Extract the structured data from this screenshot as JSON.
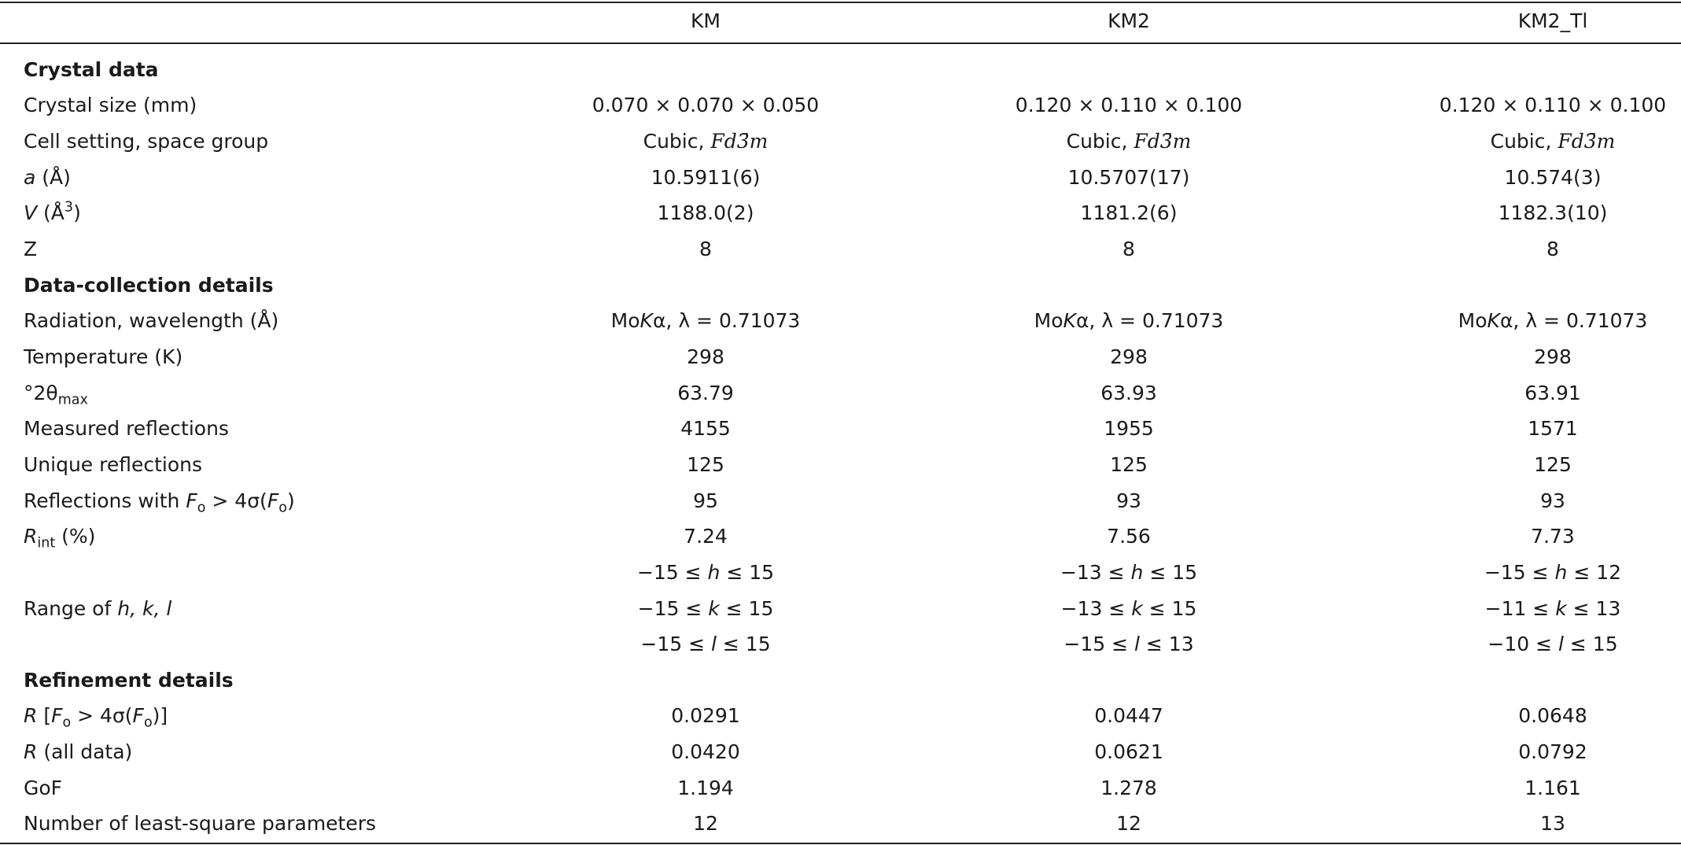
{
  "header": {
    "columns": [
      "KM",
      "KM2",
      "KM2_Tl"
    ]
  },
  "sections": [
    {
      "title": "Crystal data",
      "rows": [
        {
          "label": "Crystal size (mm)",
          "cells": [
            [
              "0.070 × 0.070 × 0.050"
            ],
            [
              "0.120 × 0.110 × 0.100"
            ],
            [
              "0.120 × 0.110 × 0.100"
            ]
          ]
        },
        {
          "label": "Cell setting, space group",
          "cells": [
            [
              [
                "Cubic, ",
                {
                  "text": "Fd3̄m",
                  "style": "math"
                }
              ]
            ],
            [
              [
                "Cubic, ",
                {
                  "text": "Fd3̄m",
                  "style": "math"
                }
              ]
            ],
            [
              [
                "Cubic, ",
                {
                  "text": "Fd3̄m",
                  "style": "math"
                }
              ]
            ]
          ]
        },
        {
          "label": [
            {
              "text": "a",
              "style": "i"
            },
            " (Å)"
          ],
          "cells": [
            [
              "10.5911(6)"
            ],
            [
              "10.5707(17)"
            ],
            [
              "10.574(3)"
            ]
          ]
        },
        {
          "label": [
            {
              "text": "V",
              "style": "i"
            },
            " (Å",
            {
              "text": "3",
              "style": "sup"
            },
            ")"
          ],
          "cells": [
            [
              "1188.0(2)"
            ],
            [
              "1181.2(6)"
            ],
            [
              "1182.3(10)"
            ]
          ]
        },
        {
          "label": "Z",
          "cells": [
            [
              "8"
            ],
            [
              "8"
            ],
            [
              "8"
            ]
          ]
        }
      ]
    },
    {
      "title": "Data-collection details",
      "rows": [
        {
          "label": "Radiation, wavelength (Å)",
          "cells": [
            [
              [
                "Mo",
                {
                  "text": "K",
                  "style": "i"
                },
                "α, λ = 0.71073"
              ]
            ],
            [
              [
                "Mo",
                {
                  "text": "K",
                  "style": "i"
                },
                "α, λ = 0.71073"
              ]
            ],
            [
              [
                "Mo",
                {
                  "text": "K",
                  "style": "i"
                },
                "α, λ = 0.71073"
              ]
            ]
          ]
        },
        {
          "label": "Temperature (K)",
          "cells": [
            [
              "298"
            ],
            [
              "298"
            ],
            [
              "298"
            ]
          ]
        },
        {
          "label": [
            "°2θ",
            {
              "text": "max",
              "style": "sub"
            }
          ],
          "cells": [
            [
              "63.79"
            ],
            [
              "63.93"
            ],
            [
              "63.91"
            ]
          ]
        },
        {
          "label": "Measured reflections",
          "cells": [
            [
              "4155"
            ],
            [
              "1955"
            ],
            [
              "1571"
            ]
          ]
        },
        {
          "label": "Unique reflections",
          "cells": [
            [
              "125"
            ],
            [
              "125"
            ],
            [
              "125"
            ]
          ]
        },
        {
          "label": [
            "Reflections with ",
            {
              "text": "F",
              "style": "i"
            },
            {
              "text": "o",
              "style": "sub"
            },
            " > 4σ(",
            {
              "text": "F",
              "style": "i"
            },
            {
              "text": "o",
              "style": "sub"
            },
            ")"
          ],
          "cells": [
            [
              "95"
            ],
            [
              "93"
            ],
            [
              "93"
            ]
          ]
        },
        {
          "label": [
            {
              "text": "R",
              "style": "i"
            },
            {
              "text": "int",
              "style": "sub"
            },
            " (%)"
          ],
          "cells": [
            [
              "7.24"
            ],
            [
              "7.56"
            ],
            [
              "7.73"
            ]
          ]
        },
        {
          "label": [
            "Range of ",
            {
              "text": "h, k, l",
              "style": "i"
            }
          ],
          "cells": [
            [
              [
                "−15 ≤ ",
                {
                  "text": "h",
                  "style": "i"
                },
                " ≤ 15"
              ],
              [
                "−15 ≤ ",
                {
                  "text": "k",
                  "style": "i"
                },
                " ≤ 15"
              ],
              [
                "−15 ≤ ",
                {
                  "text": "l",
                  "style": "i"
                },
                " ≤ 15"
              ]
            ],
            [
              [
                "−13 ≤ ",
                {
                  "text": "h",
                  "style": "i"
                },
                " ≤ 15"
              ],
              [
                "−13 ≤ ",
                {
                  "text": "k",
                  "style": "i"
                },
                " ≤ 15"
              ],
              [
                "−15 ≤ ",
                {
                  "text": "l",
                  "style": "i"
                },
                " ≤ 13"
              ]
            ],
            [
              [
                "−15 ≤ ",
                {
                  "text": "h",
                  "style": "i"
                },
                " ≤ 12"
              ],
              [
                "−11 ≤ ",
                {
                  "text": "k",
                  "style": "i"
                },
                " ≤ 13"
              ],
              [
                "−10 ≤ ",
                {
                  "text": "l",
                  "style": "i"
                },
                " ≤ 15"
              ]
            ]
          ]
        }
      ]
    },
    {
      "title": "Refinement details",
      "rows": [
        {
          "label": [
            {
              "text": "R",
              "style": "i"
            },
            " [",
            {
              "text": "F",
              "style": "i"
            },
            {
              "text": "o",
              "style": "sub"
            },
            " > 4σ(",
            {
              "text": "F",
              "style": "i"
            },
            {
              "text": "o",
              "style": "sub"
            },
            ")]"
          ],
          "cells": [
            [
              "0.0291"
            ],
            [
              "0.0447"
            ],
            [
              "0.0648"
            ]
          ]
        },
        {
          "label": [
            {
              "text": "R",
              "style": "i"
            },
            " (all data)"
          ],
          "cells": [
            [
              "0.0420"
            ],
            [
              "0.0621"
            ],
            [
              "0.0792"
            ]
          ]
        },
        {
          "label": "GoF",
          "cells": [
            [
              "1.194"
            ],
            [
              "1.278"
            ],
            [
              "1.161"
            ]
          ]
        },
        {
          "label": "Number of least-square parameters",
          "cells": [
            [
              "12"
            ],
            [
              "12"
            ],
            [
              "13"
            ]
          ]
        }
      ]
    }
  ]
}
